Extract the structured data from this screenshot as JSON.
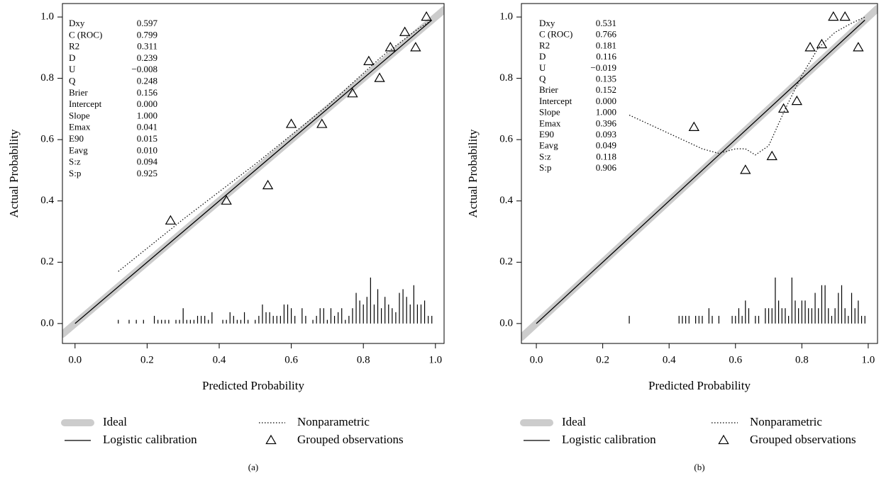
{
  "chart_data": [
    {
      "type": "line",
      "label": "(a)",
      "x_label": "Predicted Probability",
      "y_label": "Actual Probability",
      "xlim": [
        -0.035,
        1.024
      ],
      "ylim": [
        -0.065,
        1.044
      ],
      "xticks": [
        {
          "value": 0,
          "label": "0.0"
        },
        0.2,
        0.4,
        0.6,
        0.8,
        {
          "value": 1,
          "label": "1.0"
        }
      ],
      "yticks": [
        {
          "value": 0,
          "label": "0.0"
        },
        0.2,
        0.4,
        0.6,
        0.8,
        {
          "value": 1,
          "label": "1.0"
        }
      ],
      "stats": [
        [
          "Dxy",
          "0.597"
        ],
        [
          "C (ROC)",
          "0.799"
        ],
        [
          "R2",
          "0.311"
        ],
        [
          "D",
          "0.239"
        ],
        [
          "U",
          "−0.008"
        ],
        [
          "Q",
          "0.248"
        ],
        [
          "Brier",
          "0.156"
        ],
        [
          "Intercept",
          "0.000"
        ],
        [
          "Slope",
          "1.000"
        ],
        [
          "Emax",
          "0.041"
        ],
        [
          "E90",
          "0.015"
        ],
        [
          "Eavg",
          "0.010"
        ],
        [
          "S:z",
          "0.094"
        ],
        [
          "S:p",
          "0.925"
        ]
      ],
      "series": [
        {
          "name": "Ideal",
          "color": "#cccccc",
          "style": "thick",
          "x": [
            -0.035,
            1.024
          ],
          "values": [
            -0.035,
            1.024
          ]
        },
        {
          "name": "Logistic calibration",
          "color": "#000000",
          "style": "solid",
          "x": [
            0,
            0.99
          ],
          "values": [
            0,
            0.99
          ]
        },
        {
          "name": "Nonparametric",
          "color": "#000000",
          "style": "dotted",
          "x": [
            0.12,
            0.3,
            0.5,
            0.7,
            0.85,
            0.95,
            0.99
          ],
          "values": [
            0.17,
            0.34,
            0.52,
            0.71,
            0.87,
            0.96,
            0.99
          ]
        },
        {
          "name": "Grouped observations",
          "color": "#000000",
          "style": "markers",
          "x": [
            0.265,
            0.42,
            0.535,
            0.6,
            0.685,
            0.77,
            0.815,
            0.845,
            0.875,
            0.915,
            0.945,
            0.975
          ],
          "values": [
            0.335,
            0.4,
            0.45,
            0.65,
            0.65,
            0.75,
            0.855,
            0.8,
            0.9,
            0.95,
            0.9,
            1.0
          ]
        }
      ],
      "rug": {
        "x": [
          0.12,
          0.15,
          0.17,
          0.19,
          0.22,
          0.23,
          0.24,
          0.25,
          0.26,
          0.28,
          0.29,
          0.3,
          0.31,
          0.32,
          0.33,
          0.34,
          0.35,
          0.36,
          0.37,
          0.38,
          0.41,
          0.42,
          0.43,
          0.44,
          0.45,
          0.46,
          0.47,
          0.48,
          0.5,
          0.51,
          0.52,
          0.53,
          0.54,
          0.55,
          0.56,
          0.57,
          0.58,
          0.59,
          0.6,
          0.61,
          0.63,
          0.64,
          0.66,
          0.67,
          0.68,
          0.69,
          0.7,
          0.71,
          0.72,
          0.73,
          0.74,
          0.75,
          0.76,
          0.77,
          0.78,
          0.79,
          0.8,
          0.81,
          0.82,
          0.83,
          0.84,
          0.85,
          0.86,
          0.87,
          0.88,
          0.89,
          0.9,
          0.91,
          0.92,
          0.93,
          0.94,
          0.95,
          0.96,
          0.97,
          0.98,
          0.99
        ],
        "values": [
          0.012,
          0.012,
          0.012,
          0.012,
          0.025,
          0.012,
          0.012,
          0.012,
          0.012,
          0.012,
          0.012,
          0.05,
          0.012,
          0.012,
          0.012,
          0.025,
          0.025,
          0.025,
          0.012,
          0.037,
          0.012,
          0.012,
          0.037,
          0.025,
          0.012,
          0.012,
          0.037,
          0.012,
          0.012,
          0.025,
          0.062,
          0.037,
          0.037,
          0.025,
          0.025,
          0.025,
          0.062,
          0.062,
          0.05,
          0.025,
          0.05,
          0.025,
          0.012,
          0.025,
          0.05,
          0.05,
          0.012,
          0.05,
          0.025,
          0.037,
          0.05,
          0.012,
          0.025,
          0.05,
          0.1,
          0.075,
          0.062,
          0.087,
          0.15,
          0.062,
          0.112,
          0.05,
          0.087,
          0.062,
          0.05,
          0.037,
          0.1,
          0.112,
          0.087,
          0.062,
          0.125,
          0.062,
          0.062,
          0.075,
          0.025,
          0.025
        ]
      }
    },
    {
      "type": "line",
      "label": "(b)",
      "x_label": "Predicted Probability",
      "y_label": "Actual Probability",
      "xlim": [
        -0.045,
        1.028
      ],
      "ylim": [
        -0.065,
        1.044
      ],
      "xticks": [
        {
          "value": 0,
          "label": "0.0"
        },
        0.2,
        0.4,
        0.6,
        0.8,
        {
          "value": 1,
          "label": "1.0"
        }
      ],
      "yticks": [
        {
          "value": 0,
          "label": "0.0"
        },
        0.2,
        0.4,
        0.6,
        0.8,
        {
          "value": 1,
          "label": "1.0"
        }
      ],
      "stats": [
        [
          "Dxy",
          "0.531"
        ],
        [
          "C (ROC)",
          "0.766"
        ],
        [
          "R2",
          "0.181"
        ],
        [
          "D",
          "0.116"
        ],
        [
          "U",
          "−0.019"
        ],
        [
          "Q",
          "0.135"
        ],
        [
          "Brier",
          "0.152"
        ],
        [
          "Intercept",
          "0.000"
        ],
        [
          "Slope",
          "1.000"
        ],
        [
          "Emax",
          "0.396"
        ],
        [
          "E90",
          "0.093"
        ],
        [
          "Eavg",
          "0.049"
        ],
        [
          "S:z",
          "0.118"
        ],
        [
          "S:p",
          "0.906"
        ]
      ],
      "series": [
        {
          "name": "Ideal",
          "color": "#cccccc",
          "style": "thick",
          "x": [
            -0.045,
            1.028
          ],
          "values": [
            -0.045,
            1.028
          ]
        },
        {
          "name": "Logistic calibration",
          "color": "#000000",
          "style": "solid",
          "x": [
            0,
            0.99
          ],
          "values": [
            0,
            0.99
          ]
        },
        {
          "name": "Nonparametric",
          "color": "#000000",
          "style": "dotted",
          "x": [
            0.28,
            0.4,
            0.5,
            0.55,
            0.6,
            0.63,
            0.66,
            0.7,
            0.75,
            0.8,
            0.85,
            0.9,
            0.95,
            0.99
          ],
          "values": [
            0.68,
            0.62,
            0.57,
            0.555,
            0.57,
            0.57,
            0.55,
            0.58,
            0.7,
            0.81,
            0.9,
            0.95,
            0.98,
            1.0
          ]
        },
        {
          "name": "Grouped observations",
          "color": "#000000",
          "style": "markers",
          "x": [
            0.475,
            0.63,
            0.71,
            0.745,
            0.785,
            0.825,
            0.86,
            0.895,
            0.93,
            0.97
          ],
          "values": [
            0.64,
            0.5,
            0.545,
            0.7,
            0.725,
            0.9,
            0.91,
            1.0,
            1.0,
            0.9
          ]
        }
      ],
      "rug": {
        "x": [
          0.28,
          0.43,
          0.44,
          0.45,
          0.46,
          0.48,
          0.49,
          0.5,
          0.52,
          0.53,
          0.55,
          0.59,
          0.6,
          0.61,
          0.62,
          0.63,
          0.64,
          0.66,
          0.67,
          0.69,
          0.7,
          0.71,
          0.72,
          0.73,
          0.74,
          0.75,
          0.76,
          0.77,
          0.78,
          0.79,
          0.8,
          0.81,
          0.82,
          0.83,
          0.84,
          0.85,
          0.86,
          0.87,
          0.88,
          0.89,
          0.9,
          0.91,
          0.92,
          0.93,
          0.94,
          0.95,
          0.96,
          0.97,
          0.98,
          0.99
        ],
        "values": [
          0.025,
          0.025,
          0.025,
          0.025,
          0.025,
          0.025,
          0.025,
          0.025,
          0.05,
          0.025,
          0.025,
          0.025,
          0.025,
          0.05,
          0.025,
          0.075,
          0.05,
          0.025,
          0.025,
          0.05,
          0.05,
          0.05,
          0.15,
          0.075,
          0.05,
          0.05,
          0.025,
          0.15,
          0.075,
          0.05,
          0.075,
          0.075,
          0.05,
          0.05,
          0.1,
          0.05,
          0.125,
          0.125,
          0.05,
          0.025,
          0.05,
          0.1,
          0.125,
          0.05,
          0.025,
          0.1,
          0.05,
          0.075,
          0.025,
          0.025
        ]
      }
    }
  ]
}
